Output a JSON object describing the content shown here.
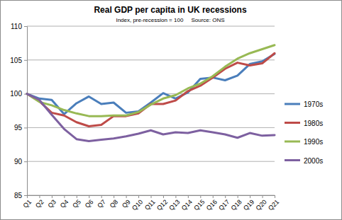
{
  "chart_data": {
    "type": "line",
    "title": "Real GDP per capita in UK recessions",
    "subtitle": "Index, pre-recession = 100     Source: ONS",
    "categories": [
      "Q1",
      "Q2",
      "Q3",
      "Q4",
      "Q5",
      "Q6",
      "Q7",
      "Q8",
      "Q9",
      "Q10",
      "Q11",
      "Q12",
      "Q13",
      "Q14",
      "Q15",
      "Q16",
      "Q17",
      "Q18",
      "Q19",
      "Q20",
      "Q21"
    ],
    "series": [
      {
        "name": "1970s",
        "color": "#4a7ebb",
        "values": [
          100,
          99.3,
          99.1,
          97.0,
          98.6,
          99.6,
          98.5,
          98.7,
          97.2,
          97.4,
          98.7,
          100.1,
          99.3,
          100.2,
          102.2,
          102.4,
          102.0,
          102.7,
          104.4,
          104.8,
          105.9
        ]
      },
      {
        "name": "1980s",
        "color": "#be4b48",
        "values": [
          100,
          98.9,
          97.2,
          96.8,
          95.8,
          95.2,
          95.4,
          96.7,
          96.7,
          97.1,
          98.5,
          98.5,
          99.0,
          100.4,
          101.2,
          102.4,
          103.7,
          104.6,
          104.2,
          104.5,
          106.0
        ]
      },
      {
        "name": "1990s",
        "color": "#98b954",
        "values": [
          100,
          98.8,
          98.3,
          97.6,
          97.1,
          96.7,
          96.7,
          96.8,
          96.8,
          97.3,
          98.4,
          99.3,
          99.8,
          100.8,
          101.5,
          102.6,
          104.0,
          105.2,
          106.0,
          106.6,
          107.2
        ]
      },
      {
        "name": "2000s",
        "color": "#7d60a0",
        "values": [
          100,
          99.1,
          96.9,
          94.8,
          93.3,
          93.0,
          93.2,
          93.4,
          93.7,
          94.1,
          94.6,
          94.0,
          94.3,
          94.2,
          94.6,
          94.3,
          94.0,
          93.5,
          94.2,
          93.8,
          93.9
        ]
      }
    ],
    "ylim": [
      85,
      110
    ],
    "yticks": [
      85,
      90,
      95,
      100,
      105,
      110
    ],
    "grid": true,
    "legend": "right"
  }
}
